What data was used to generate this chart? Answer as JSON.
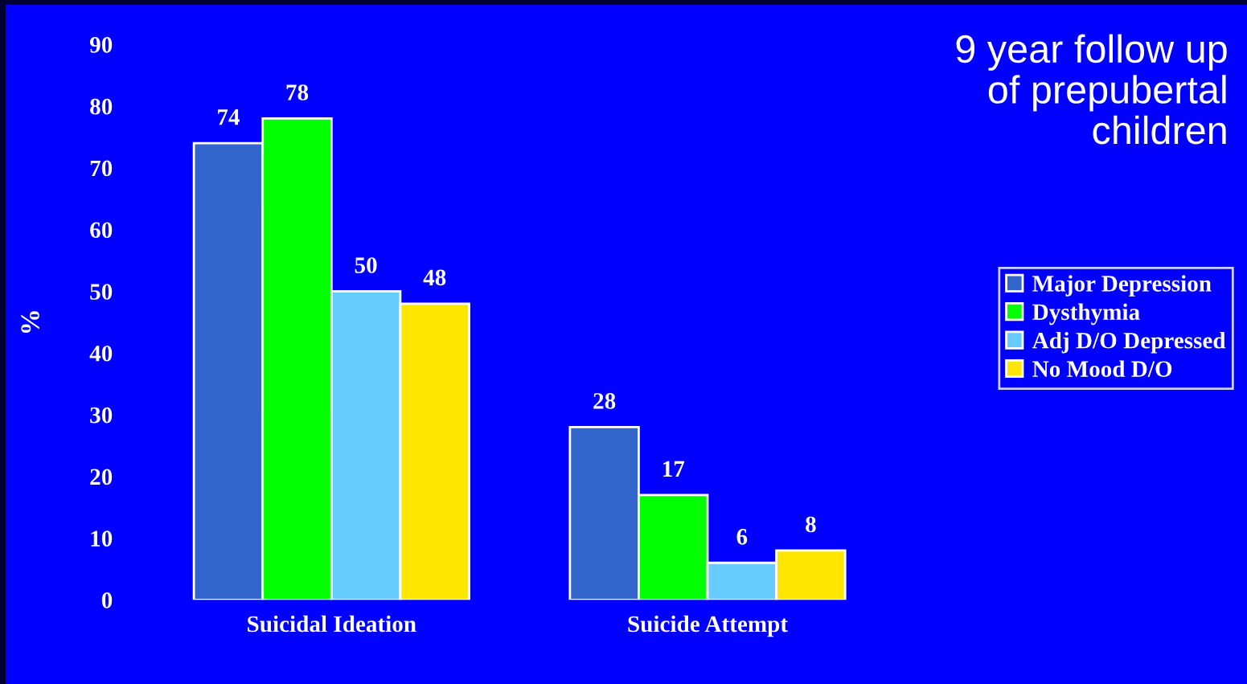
{
  "chart_data": {
    "type": "bar",
    "title": "9 year follow up\nof prepubertal\nchildren",
    "ylabel": "%",
    "categories": [
      "Suicidal Ideation",
      "Suicide Attempt"
    ],
    "series": [
      {
        "name": "Major Depression",
        "color": "#3366cc",
        "values": [
          74,
          28
        ]
      },
      {
        "name": "Dysthymia",
        "color": "#00ff00",
        "values": [
          78,
          17
        ]
      },
      {
        "name": "Adj D/O Depressed",
        "color": "#66ccff",
        "values": [
          50,
          6
        ]
      },
      {
        "name": "No Mood D/O",
        "color": "#ffe600",
        "values": [
          48,
          8
        ]
      }
    ],
    "ylim": [
      0,
      90
    ],
    "yticks": [
      0,
      10,
      20,
      30,
      40,
      50,
      60,
      70,
      80,
      90
    ],
    "data_labels": true,
    "grid": false,
    "legend": "right"
  }
}
